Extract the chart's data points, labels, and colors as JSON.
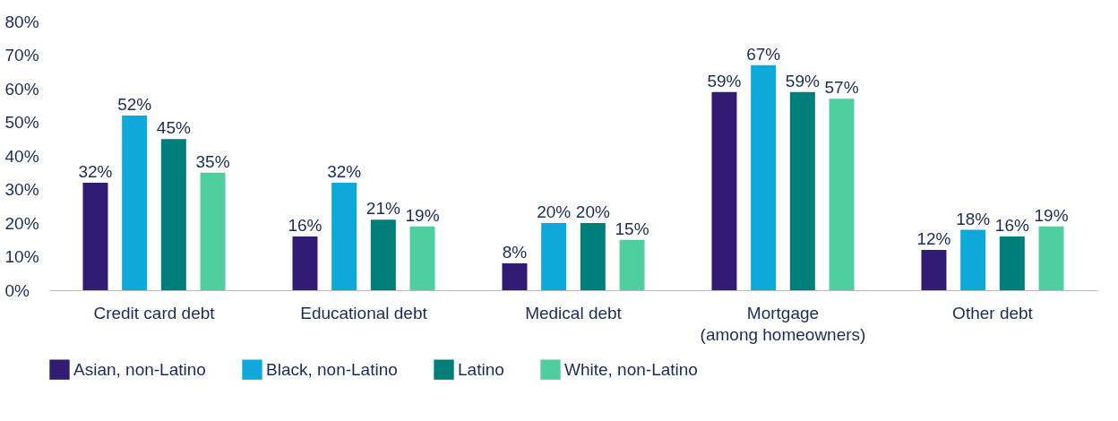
{
  "chart_data": {
    "type": "bar",
    "categories": [
      "Credit card debt",
      "Educational debt",
      "Medical debt",
      "Mortgage\n(among homeowners)",
      "Other debt"
    ],
    "series": [
      {
        "name": "Asian, non-Latino",
        "color": "#311b73",
        "values": [
          32,
          16,
          8,
          59,
          12
        ]
      },
      {
        "name": "Black, non-Latino",
        "color": "#0ea9d8",
        "values": [
          52,
          32,
          20,
          67,
          18
        ]
      },
      {
        "name": "Latino",
        "color": "#007f7a",
        "values": [
          45,
          21,
          20,
          59,
          16
        ]
      },
      {
        "name": "White, non-Latino",
        "color": "#4fcf9f",
        "values": [
          35,
          19,
          15,
          57,
          19
        ]
      }
    ],
    "ylim": [
      0,
      80
    ],
    "yticks": [
      {
        "value": 0,
        "label": "0%"
      },
      {
        "value": 10,
        "label": "10%"
      },
      {
        "value": 20,
        "label": "20%"
      },
      {
        "value": 30,
        "label": "30%"
      },
      {
        "value": 40,
        "label": "40%"
      },
      {
        "value": 50,
        "label": "50%"
      },
      {
        "value": 60,
        "label": "60%"
      },
      {
        "value": 70,
        "label": "70%"
      },
      {
        "value": 80,
        "label": "80%"
      }
    ],
    "value_labels": [
      [
        "32%",
        "16%",
        "8%",
        "59%",
        "12%"
      ],
      [
        "52%",
        "32%",
        "20%",
        "67%",
        "18%"
      ],
      [
        "45%",
        "21%",
        "20%",
        "59%",
        "16%"
      ],
      [
        "35%",
        "19%",
        "15%",
        "57%",
        "19%"
      ]
    ],
    "grid": false,
    "legend": "bottom left"
  }
}
